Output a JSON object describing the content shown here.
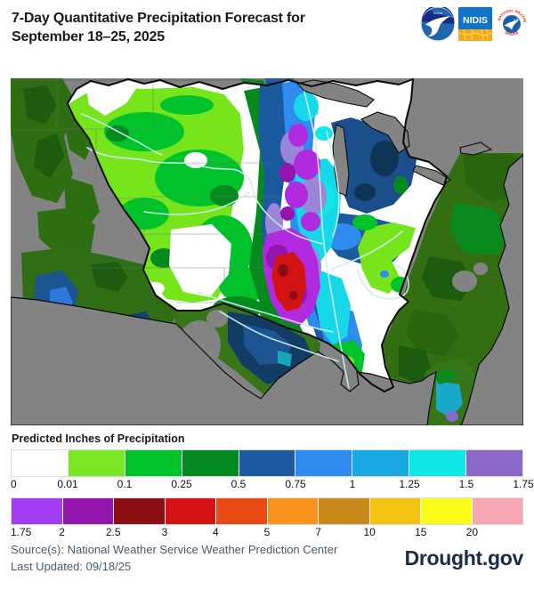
{
  "header": {
    "title_line1": "7-Day Quantitative Precipitation Forecast for",
    "title_line2": "September 18–25, 2025"
  },
  "logos": {
    "noaa_label": "NOAA",
    "nidis_label": "NIDIS",
    "nws_label": "NATIONAL WEATHER SERVICE"
  },
  "legend": {
    "title": "Predicted Inches of Precipitation",
    "rows": [
      {
        "colors": [
          "#FFFFFF",
          "#7BE826",
          "#00C32B",
          "#028A20",
          "#1C5BA4",
          "#2E8BF0",
          "#18A8E2",
          "#0FE6E6",
          "#8A68C8"
        ],
        "ticks": [
          "0",
          "0.01",
          "0.1",
          "0.25",
          "0.5",
          "0.75",
          "1",
          "1.25",
          "1.5",
          "1.75"
        ]
      },
      {
        "colors": [
          "#A43DF2",
          "#9414AE",
          "#8B0F12",
          "#D31313",
          "#E94A13",
          "#F8931D",
          "#C8891A",
          "#F3C512",
          "#FBFB1C",
          "#F7A6B4"
        ],
        "ticks": [
          "1.75",
          "2",
          "2.5",
          "3",
          "4",
          "5",
          "7",
          "10",
          "15",
          "20"
        ]
      }
    ]
  },
  "footer": {
    "source": "Source(s): National Weather Service Weather Prediction Center",
    "last_updated": "Last Updated: 09/18/25",
    "brand": "Drought.gov"
  }
}
